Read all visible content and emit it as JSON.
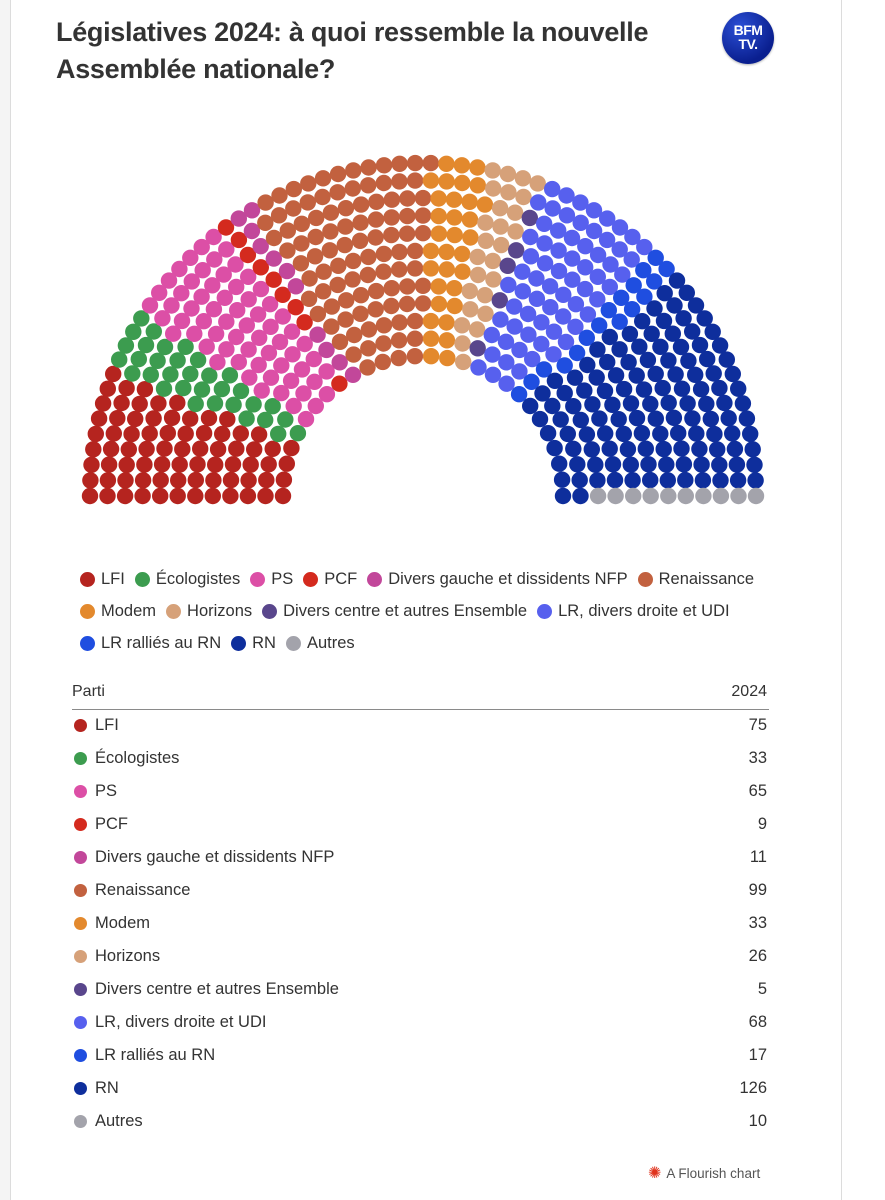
{
  "header": {
    "title_line1": "Législatives 2024: à quoi ressemble la nouvelle",
    "title_line2": "Assemblée nationale?",
    "logo_line1": "BFM",
    "logo_line2": "TV."
  },
  "chart_data": {
    "type": "parliament",
    "total_seats": 577,
    "series": [
      {
        "name": "LFI",
        "seats": 75,
        "color": "#b5241f"
      },
      {
        "name": "Écologistes",
        "seats": 33,
        "color": "#3c9c4f"
      },
      {
        "name": "PS",
        "seats": 65,
        "color": "#dc4fa6"
      },
      {
        "name": "PCF",
        "seats": 9,
        "color": "#d42a1e"
      },
      {
        "name": "Divers gauche et dissidents NFP",
        "seats": 11,
        "color": "#c2479a"
      },
      {
        "name": "Renaissance",
        "seats": 99,
        "color": "#c2613f"
      },
      {
        "name": "Modem",
        "seats": 33,
        "color": "#e3892d"
      },
      {
        "name": "Horizons",
        "seats": 26,
        "color": "#d6a179"
      },
      {
        "name": "Divers centre et autres Ensemble",
        "seats": 5,
        "color": "#59468c"
      },
      {
        "name": "LR, divers droite et UDI",
        "seats": 68,
        "color": "#5760ee"
      },
      {
        "name": "LR ralliés au RN",
        "seats": 17,
        "color": "#1f4ee0"
      },
      {
        "name": "RN",
        "seats": 126,
        "color": "#0e2e9c"
      },
      {
        "name": "Autres",
        "seats": 10,
        "color": "#a3a3ab"
      }
    ]
  },
  "table": {
    "col_party": "Parti",
    "col_year": "2024"
  },
  "credit": {
    "text": "A Flourish chart"
  }
}
